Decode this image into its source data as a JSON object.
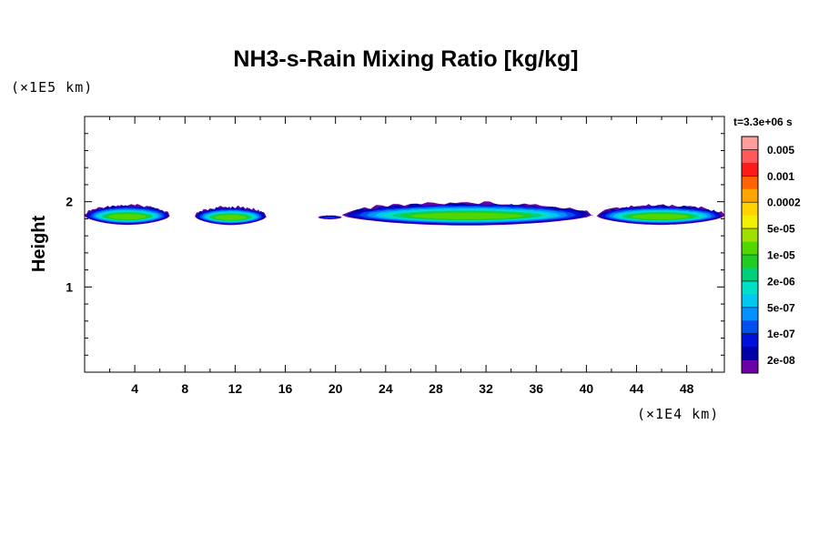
{
  "chart_data": {
    "type": "heatmap",
    "title": "NH3-s-Rain Mixing Ratio [kg/kg]",
    "time_label": "t=3.3e+06 s",
    "xlabel": "",
    "ylabel": "Height",
    "x_unit": "(×1E4 km)",
    "y_unit": "(×1E5 km)",
    "xlim": [
      0,
      51
    ],
    "ylim": [
      0,
      3
    ],
    "x_ticks": [
      4,
      8,
      12,
      16,
      20,
      24,
      28,
      32,
      36,
      40,
      44,
      48
    ],
    "x_tick_labels": [
      "4",
      "8",
      "12",
      "16",
      "20",
      "24",
      "28",
      "32",
      "36",
      "40",
      "44",
      "48"
    ],
    "y_ticks": [
      1,
      2
    ],
    "y_tick_labels": [
      "1",
      "2"
    ],
    "colorbar": {
      "levels": [
        "0.005",
        "0.001",
        "0.0002",
        "5e-05",
        "1e-05",
        "2e-06",
        "5e-07",
        "1e-07",
        "2e-08"
      ],
      "colors_top_to_bottom": [
        "#ff9c9c",
        "#ff5a5a",
        "#ff1a1a",
        "#ff6400",
        "#ffa500",
        "#ffd200",
        "#f0f000",
        "#a0e000",
        "#52d600",
        "#20cc20",
        "#00d07a",
        "#00e0c8",
        "#00c8f0",
        "#0090ff",
        "#0050f0",
        "#0010dc",
        "#0000a8",
        "#6a00a8"
      ]
    },
    "cloud_bands": [
      {
        "x_start": 0.0,
        "x_end": 6.8,
        "y_bottom": 1.71,
        "y_top": 1.96,
        "peak_level": "5e-05"
      },
      {
        "x_start": 8.8,
        "x_end": 14.5,
        "y_bottom": 1.71,
        "y_top": 1.94,
        "peak_level": "5e-05"
      },
      {
        "x_start": 18.6,
        "x_end": 20.5,
        "y_bottom": 1.79,
        "y_top": 1.84,
        "peak_level": "1e-07"
      },
      {
        "x_start": 20.5,
        "x_end": 40.5,
        "y_bottom": 1.7,
        "y_top": 1.99,
        "peak_level": "5e-05"
      },
      {
        "x_start": 40.8,
        "x_end": 51.0,
        "y_bottom": 1.71,
        "y_top": 1.96,
        "peak_level": "5e-05"
      }
    ]
  }
}
